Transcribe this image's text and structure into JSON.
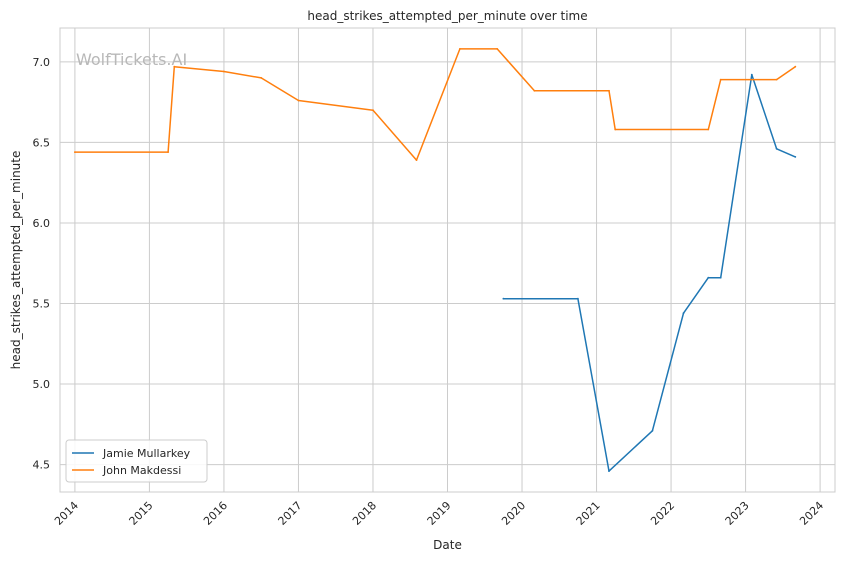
{
  "chart_data": {
    "type": "line",
    "title": "head_strikes_attempted_per_minute over time",
    "xlabel": "Date",
    "ylabel": "head_strikes_attempted_per_minute",
    "xlim": [
      2013.8,
      2024.2
    ],
    "ylim": [
      4.33,
      7.21
    ],
    "x_ticks": [
      "2014",
      "2015",
      "2016",
      "2017",
      "2018",
      "2019",
      "2020",
      "2021",
      "2022",
      "2023",
      "2024"
    ],
    "y_ticks": [
      "4.5",
      "5.0",
      "5.5",
      "6.0",
      "6.5",
      "7.0"
    ],
    "grid": true,
    "legend_position": "lower-left",
    "watermark": "WolfTickets.AI",
    "series": [
      {
        "name": "Jamie Mullarkey",
        "color": "#1f77b4",
        "points": [
          {
            "x": "2019-10",
            "y": 5.53
          },
          {
            "x": "2020-10",
            "y": 5.53
          },
          {
            "x": "2021-03",
            "y": 4.46
          },
          {
            "x": "2021-10",
            "y": 4.71
          },
          {
            "x": "2022-03",
            "y": 5.44
          },
          {
            "x": "2022-07",
            "y": 5.66
          },
          {
            "x": "2022-09",
            "y": 5.66
          },
          {
            "x": "2023-02",
            "y": 6.92
          },
          {
            "x": "2023-06",
            "y": 6.46
          },
          {
            "x": "2023-09",
            "y": 6.41
          }
        ]
      },
      {
        "name": "John Makdessi",
        "color": "#ff7f0e",
        "points": [
          {
            "x": "2014-01",
            "y": 6.44
          },
          {
            "x": "2015-04",
            "y": 6.44
          },
          {
            "x": "2015-05",
            "y": 6.97
          },
          {
            "x": "2016-01",
            "y": 6.94
          },
          {
            "x": "2016-07",
            "y": 6.9
          },
          {
            "x": "2017-01",
            "y": 6.76
          },
          {
            "x": "2018-01",
            "y": 6.7
          },
          {
            "x": "2018-08",
            "y": 6.39
          },
          {
            "x": "2019-03",
            "y": 7.08
          },
          {
            "x": "2019-09",
            "y": 7.08
          },
          {
            "x": "2020-03",
            "y": 6.82
          },
          {
            "x": "2021-03",
            "y": 6.82
          },
          {
            "x": "2021-04",
            "y": 6.58
          },
          {
            "x": "2022-07",
            "y": 6.58
          },
          {
            "x": "2022-09",
            "y": 6.89
          },
          {
            "x": "2023-06",
            "y": 6.89
          },
          {
            "x": "2023-09",
            "y": 6.97
          }
        ]
      }
    ]
  }
}
